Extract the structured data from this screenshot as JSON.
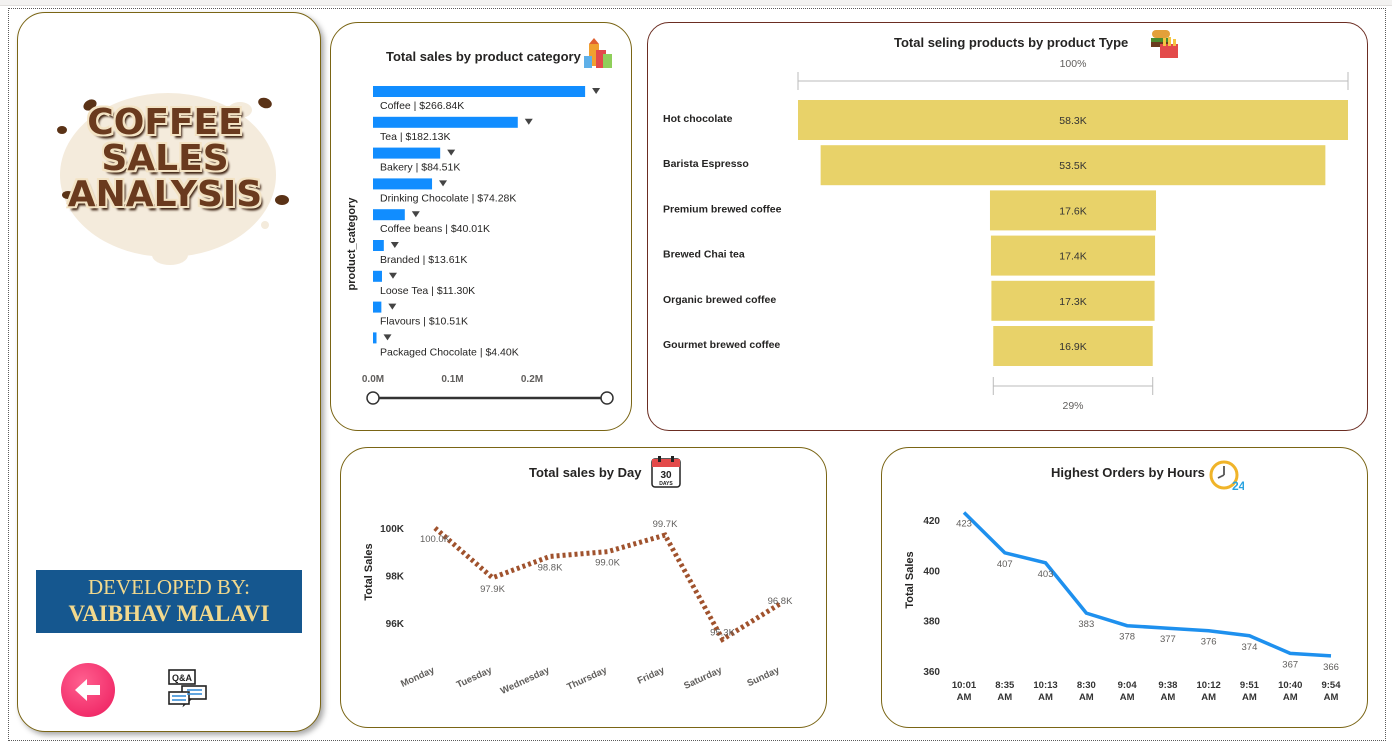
{
  "logo": {
    "lines": [
      "COFFEE",
      "SALES",
      "ANALYSIS"
    ]
  },
  "developer": {
    "line1": "DEVELOPED BY:",
    "line2": "VAIBHAV MALAVI"
  },
  "nav": {
    "back_icon": "back-arrow-icon",
    "qa_icon": "qa-icon"
  },
  "colors": {
    "card_border": "#7a6515",
    "bar_blue": "#118dff",
    "funnel_yellow": "#e8d269",
    "dotted_line": "#a0522d",
    "hours_line": "#1e90ee",
    "dev_bg": "#15578f",
    "dev_text": "#f2d98d"
  },
  "chart_data": [
    {
      "type": "bar",
      "orientation": "horizontal",
      "title": "Total sales by product category",
      "ylabel": "product_category",
      "categories": [
        "Coffee",
        "Tea",
        "Bakery",
        "Drinking Chocolate",
        "Coffee beans",
        "Branded",
        "Loose Tea",
        "Flavours",
        "Packaged Chocolate"
      ],
      "values": [
        266.84,
        182.13,
        84.51,
        74.28,
        40.01,
        13.61,
        11.3,
        10.51,
        4.4
      ],
      "labels": [
        "Coffee | $266.84K",
        "Tea | $182.13K",
        "Bakery | $84.51K",
        "Drinking Chocolate | $74.28K",
        "Coffee beans | $40.01K",
        "Branded | $13.61K",
        "Loose Tea | $11.30K",
        "Flavours | $10.51K",
        "Packaged Chocolate | $4.40K"
      ],
      "xticks": [
        "0.0M",
        "0.1M",
        "0.2M"
      ],
      "xlim": [
        0,
        0.3
      ]
    },
    {
      "type": "funnel",
      "title": "Total seling products by product Type",
      "top_pct": "100%",
      "bottom_pct": "29%",
      "categories": [
        "Hot chocolate",
        "Barista Espresso",
        "Premium brewed coffee",
        "Brewed Chai tea",
        "Organic brewed coffee",
        "Gourmet brewed coffee"
      ],
      "values": [
        58.3,
        53.5,
        17.6,
        17.4,
        17.3,
        16.9
      ],
      "labels": [
        "58.3K",
        "53.5K",
        "17.6K",
        "17.4K",
        "17.3K",
        "16.9K"
      ]
    },
    {
      "type": "line",
      "title": "Total sales by Day",
      "ylabel": "Total Sales",
      "categories": [
        "Monday",
        "Tuesday",
        "Wednesday",
        "Thursday",
        "Friday",
        "Saturday",
        "Sunday"
      ],
      "values": [
        100.0,
        97.9,
        98.8,
        99.0,
        99.7,
        95.3,
        96.8
      ],
      "labels": [
        "100.0K",
        "97.9K",
        "98.8K",
        "99.0K",
        "99.7K",
        "95.3K",
        "96.8K"
      ],
      "yticks": [
        "100K",
        "98K",
        "96K"
      ],
      "ytick_values": [
        100,
        98,
        96
      ],
      "ylim": [
        94.6,
        100.8
      ]
    },
    {
      "type": "line",
      "title": "Highest Orders by Hours",
      "ylabel": "Total Sales",
      "categories": [
        [
          "10:01",
          "AM"
        ],
        [
          "8:35",
          "AM"
        ],
        [
          "10:13",
          "AM"
        ],
        [
          "8:30",
          "AM"
        ],
        [
          "9:04",
          "AM"
        ],
        [
          "9:38",
          "AM"
        ],
        [
          "10:12",
          "AM"
        ],
        [
          "9:51",
          "AM"
        ],
        [
          "10:40",
          "AM"
        ],
        [
          "9:54",
          "AM"
        ]
      ],
      "values": [
        423,
        407,
        403,
        383,
        378,
        377,
        376,
        374,
        367,
        366
      ],
      "labels": [
        "423",
        "407",
        "403",
        "383",
        "378",
        "377",
        "376",
        "374",
        "367",
        "366"
      ],
      "yticks": [
        "420",
        "400",
        "380",
        "360"
      ],
      "ytick_values": [
        420,
        400,
        380,
        360
      ],
      "ylim": [
        358,
        426
      ]
    }
  ]
}
